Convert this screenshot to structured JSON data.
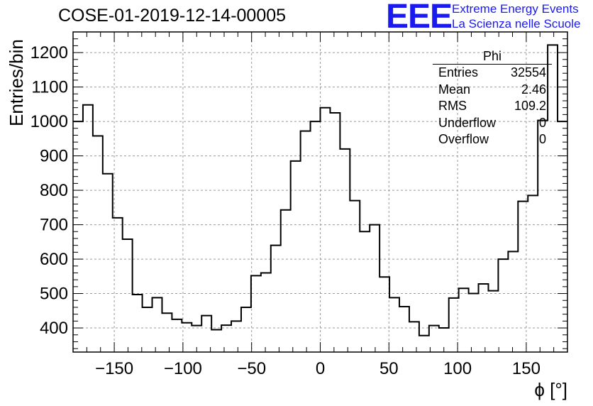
{
  "title": "COSE-01-2019-12-14-00005",
  "logo": {
    "mark": "EEE",
    "line1": "Extreme Energy Events",
    "line2": "La Scienza nelle Scuole"
  },
  "stats_box": {
    "name": "Phi",
    "rows": [
      {
        "label": "Entries",
        "value": "32554"
      },
      {
        "label": "Mean",
        "value": "2.46"
      },
      {
        "label": "RMS",
        "value": "109.2"
      },
      {
        "label": "Underflow",
        "value": "0"
      },
      {
        "label": "Overflow",
        "value": "0"
      }
    ]
  },
  "chart_data": {
    "type": "bar",
    "histogram": true,
    "xlabel": "ϕ [°]",
    "ylabel": "Entries/bin",
    "xlim": [
      -180,
      180
    ],
    "ylim": [
      330,
      1260
    ],
    "grid": true,
    "bin_width": 7.2,
    "x_ticks": [
      -150,
      -100,
      -50,
      0,
      50,
      100,
      150
    ],
    "y_ticks": [
      400,
      500,
      600,
      700,
      800,
      900,
      1000,
      1100,
      1200
    ],
    "values": [
      1000,
      1048,
      958,
      848,
      720,
      658,
      497,
      460,
      488,
      443,
      425,
      415,
      407,
      436,
      395,
      408,
      420,
      460,
      552,
      560,
      640,
      743,
      885,
      972,
      1000,
      1040,
      1025,
      920,
      770,
      680,
      700,
      548,
      488,
      462,
      418,
      378,
      407,
      400,
      487,
      515,
      500,
      528,
      508,
      600,
      622,
      768,
      785,
      1003,
      1222,
      1000
    ]
  }
}
